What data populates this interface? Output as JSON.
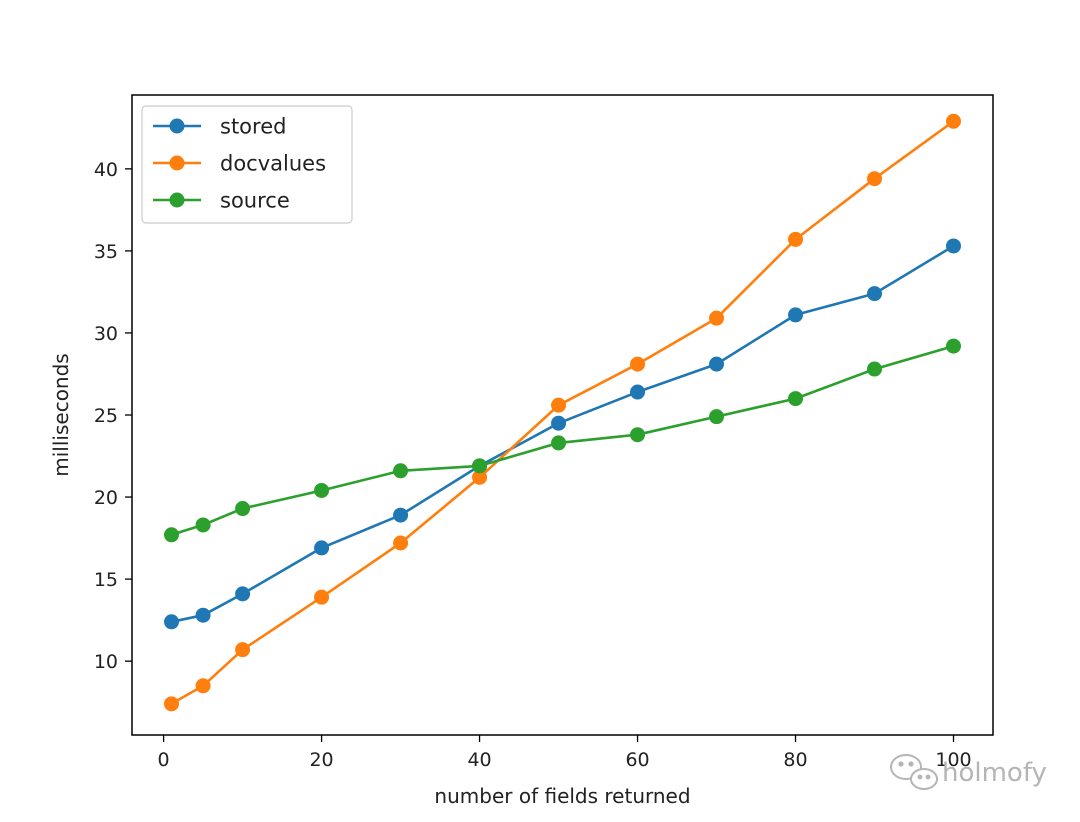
{
  "chart_data": {
    "type": "line",
    "title": "",
    "xlabel": "number of fields returned",
    "ylabel": "milliseconds",
    "xlim": [
      -4,
      105
    ],
    "ylim": [
      5.5,
      44.5
    ],
    "xticks": [
      0,
      20,
      40,
      60,
      80,
      100
    ],
    "yticks": [
      10,
      15,
      20,
      25,
      30,
      35,
      40
    ],
    "grid": false,
    "legend_position": "top-left",
    "x": [
      1,
      5,
      10,
      20,
      30,
      40,
      50,
      60,
      70,
      80,
      90,
      100
    ],
    "series": [
      {
        "name": "stored",
        "color": "#1f77b4",
        "values": [
          12.4,
          12.8,
          14.1,
          16.9,
          18.9,
          21.9,
          24.5,
          26.4,
          28.1,
          31.1,
          32.4,
          35.3
        ]
      },
      {
        "name": "docvalues",
        "color": "#ff7f0e",
        "values": [
          7.4,
          8.5,
          10.7,
          13.9,
          17.2,
          21.2,
          25.6,
          28.1,
          30.9,
          35.7,
          39.4,
          42.9
        ]
      },
      {
        "name": "source",
        "color": "#2ca02c",
        "values": [
          17.7,
          18.3,
          19.3,
          20.4,
          21.6,
          21.9,
          23.3,
          23.8,
          24.9,
          26.0,
          27.8,
          29.2
        ]
      }
    ]
  },
  "watermark": {
    "text": "holmofy",
    "icon": "wechat-icon"
  }
}
